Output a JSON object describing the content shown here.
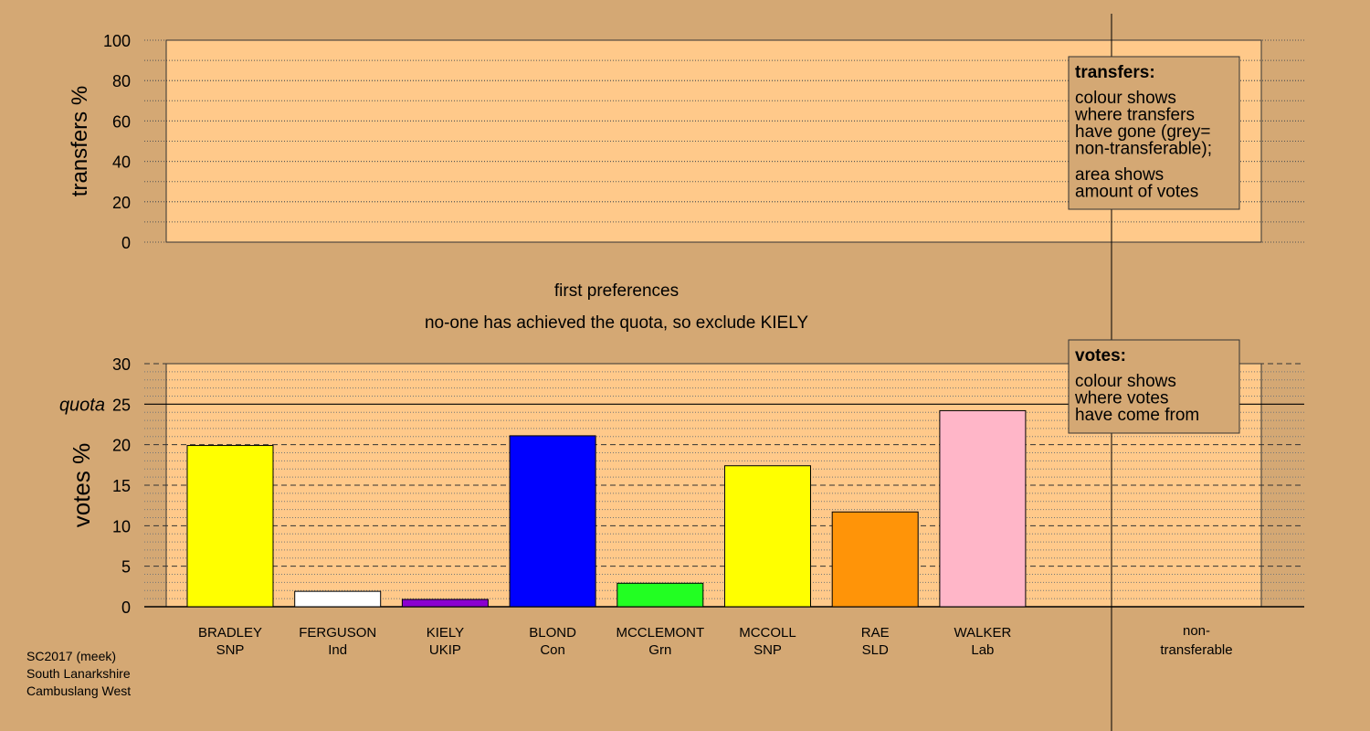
{
  "colors": {
    "background": "#d4a874",
    "panel": "#ffc98a",
    "border": "#000000"
  },
  "heading": {
    "line1": "first preferences",
    "line2": "no-one has achieved the quota, so exclude KIELY"
  },
  "transfers_legend": {
    "title": "transfers:",
    "lines": [
      "colour shows",
      "where transfers",
      "have gone (grey=",
      "non-transferable);"
    ],
    "lines2": [
      "area shows",
      "amount of votes"
    ]
  },
  "votes_legend": {
    "title": "votes:",
    "lines": [
      "colour shows",
      "where votes",
      "have come from"
    ]
  },
  "footer": [
    "SC2017 (meek)",
    "South Lanarkshire",
    "Cambuslang West"
  ],
  "chart_data": [
    {
      "type": "bar",
      "ylabel": "transfers %",
      "ylim": [
        0,
        100
      ],
      "yticks": [
        0,
        20,
        40,
        60,
        80,
        100
      ],
      "grid": true,
      "values": []
    },
    {
      "type": "bar",
      "ylabel": "votes %",
      "ylim": [
        0,
        30
      ],
      "yticks": [
        0,
        5,
        10,
        15,
        20,
        25,
        30
      ],
      "quota": 25,
      "quota_label": "quota",
      "grid": true,
      "categories": [
        {
          "name": "BRADLEY",
          "party": "SNP"
        },
        {
          "name": "FERGUSON",
          "party": "Ind"
        },
        {
          "name": "KIELY",
          "party": "UKIP"
        },
        {
          "name": "BLOND",
          "party": "Con"
        },
        {
          "name": "MCCLEMONT",
          "party": "Grn"
        },
        {
          "name": "MCCOLL",
          "party": "SNP"
        },
        {
          "name": "RAE",
          "party": "SLD"
        },
        {
          "name": "WALKER",
          "party": "Lab"
        }
      ],
      "values": [
        19.9,
        1.9,
        0.9,
        21.1,
        2.9,
        17.4,
        11.7,
        24.2
      ],
      "bar_colors": [
        "#ffff00",
        "#ffffff",
        "#8b00d0",
        "#0000ff",
        "#22ff22",
        "#ffff00",
        "#ff9408",
        "#ffb6c8"
      ],
      "non_transferable_label": [
        "non-",
        "transferable"
      ]
    }
  ]
}
